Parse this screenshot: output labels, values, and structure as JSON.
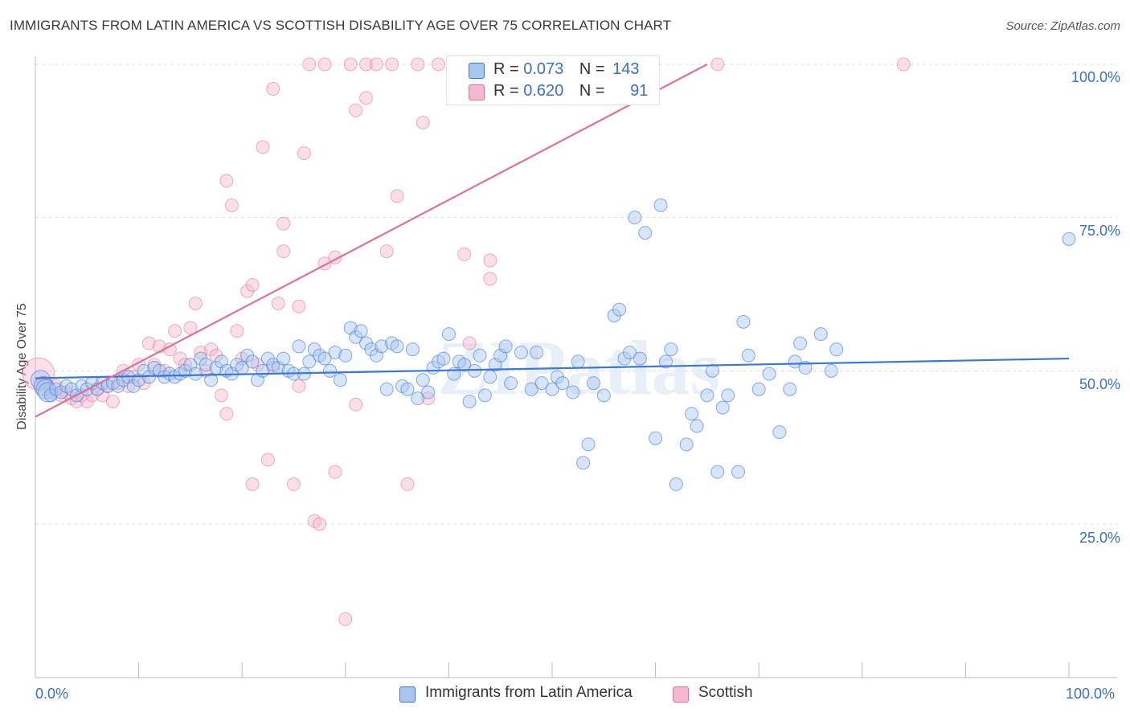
{
  "title": "IMMIGRANTS FROM LATIN AMERICA VS SCOTTISH DISABILITY AGE OVER 75 CORRELATION CHART",
  "source": "Source: ZipAtlas.com",
  "watermark": "ZIPatlas",
  "legend": {
    "blue": {
      "r_label": "R =",
      "r_value": "0.073",
      "n_label": "N =",
      "n_value": "143"
    },
    "pink": {
      "r_label": "R =",
      "r_value": "0.620",
      "n_label": "N =",
      "n_value": "91"
    }
  },
  "colors": {
    "blue": "#3a78d6",
    "blue_fill": "#a9c6f0",
    "pink": "#e0709a",
    "pink_fill": "#f6b8cd",
    "tick_label": "#3a6fc4"
  },
  "chart_data": {
    "type": "scatter",
    "title": "IMMIGRANTS FROM LATIN AMERICA VS SCOTTISH DISABILITY AGE OVER 75 CORRELATION CHART",
    "xlabel": "",
    "ylabel": "Disability Age Over 75",
    "xlim": [
      0,
      100
    ],
    "ylim": [
      5,
      103
    ],
    "x_ticks": [
      "0.0%",
      "100.0%"
    ],
    "y_ticks": [
      {
        "value": 100,
        "label": "100.0%"
      },
      {
        "value": 75,
        "label": "75.0%"
      },
      {
        "value": 50,
        "label": "50.0%"
      },
      {
        "value": 25,
        "label": "25.0%"
      }
    ],
    "grid": "horizontal dashed",
    "legend_position": "bottom",
    "series": [
      {
        "name": "Immigrants from Latin America",
        "color": "#3a78d6",
        "trend": {
          "x": [
            0,
            100
          ],
          "y": [
            48.8,
            52.0
          ]
        },
        "points": [
          [
            0.5,
            48.5
          ],
          [
            0.8,
            47.5
          ],
          [
            1,
            47
          ],
          [
            1.2,
            46.5
          ],
          [
            1.5,
            46
          ],
          [
            2,
            47
          ],
          [
            2.5,
            46.5
          ],
          [
            3,
            47.5
          ],
          [
            3.5,
            47
          ],
          [
            4,
            46
          ],
          [
            4.5,
            47.5
          ],
          [
            5,
            47
          ],
          [
            5.5,
            48
          ],
          [
            6,
            47
          ],
          [
            6.5,
            48
          ],
          [
            7,
            47.5
          ],
          [
            7.5,
            48
          ],
          [
            8,
            47.5
          ],
          [
            8.5,
            48.5
          ],
          [
            9,
            49
          ],
          [
            9.5,
            47.5
          ],
          [
            10,
            48.5
          ],
          [
            10.5,
            50
          ],
          [
            11,
            49
          ],
          [
            11.5,
            50.5
          ],
          [
            12,
            50
          ],
          [
            12.5,
            49
          ],
          [
            13,
            49.5
          ],
          [
            13.5,
            49
          ],
          [
            14,
            49.5
          ],
          [
            14.5,
            50
          ],
          [
            15,
            51
          ],
          [
            15.5,
            49.5
          ],
          [
            16,
            52
          ],
          [
            16.5,
            51
          ],
          [
            17,
            48.5
          ],
          [
            17.5,
            50.5
          ],
          [
            18,
            51.5
          ],
          [
            18.5,
            50
          ],
          [
            19,
            49.5
          ],
          [
            19.5,
            51
          ],
          [
            20,
            50.5
          ],
          [
            20.5,
            52.5
          ],
          [
            21,
            51.5
          ],
          [
            21.5,
            48.5
          ],
          [
            22,
            50
          ],
          [
            22.5,
            52
          ],
          [
            23,
            51
          ],
          [
            23.5,
            50.5
          ],
          [
            24,
            52
          ],
          [
            24.5,
            50
          ],
          [
            25,
            49.5
          ],
          [
            25.5,
            54
          ],
          [
            26,
            49.5
          ],
          [
            26.5,
            51.5
          ],
          [
            27,
            53.5
          ],
          [
            27.5,
            52.5
          ],
          [
            28,
            52
          ],
          [
            28.5,
            50
          ],
          [
            29,
            53
          ],
          [
            29.5,
            48.5
          ],
          [
            30,
            52.5
          ],
          [
            30.5,
            57
          ],
          [
            31,
            55.5
          ],
          [
            31.5,
            56.5
          ],
          [
            32,
            54.5
          ],
          [
            32.5,
            53.5
          ],
          [
            33,
            52.5
          ],
          [
            33.5,
            54
          ],
          [
            34,
            47
          ],
          [
            34.5,
            54.5
          ],
          [
            35,
            54
          ],
          [
            35.5,
            47.5
          ],
          [
            36,
            47
          ],
          [
            36.5,
            53.5
          ],
          [
            37,
            45.5
          ],
          [
            37.5,
            48.5
          ],
          [
            38,
            46.5
          ],
          [
            38.5,
            50.5
          ],
          [
            39,
            51.5
          ],
          [
            39.5,
            52
          ],
          [
            40,
            56
          ],
          [
            40.5,
            49.5
          ],
          [
            41,
            51.5
          ],
          [
            41.5,
            51
          ],
          [
            42,
            45
          ],
          [
            42.5,
            50
          ],
          [
            43,
            52.5
          ],
          [
            43.5,
            46
          ],
          [
            44,
            49
          ],
          [
            44.5,
            51
          ],
          [
            45,
            52.5
          ],
          [
            45.5,
            54
          ],
          [
            46,
            48
          ],
          [
            47,
            53
          ],
          [
            48,
            47
          ],
          [
            48.5,
            53
          ],
          [
            49,
            48
          ],
          [
            50,
            47
          ],
          [
            50.5,
            49
          ],
          [
            51,
            48
          ],
          [
            52,
            46.5
          ],
          [
            52.5,
            51.5
          ],
          [
            53,
            35
          ],
          [
            53.5,
            38
          ],
          [
            54,
            48
          ],
          [
            55,
            46
          ],
          [
            56,
            59
          ],
          [
            56.5,
            60
          ],
          [
            57,
            52
          ],
          [
            57.5,
            53
          ],
          [
            58,
            75
          ],
          [
            58.5,
            52
          ],
          [
            59,
            72.5
          ],
          [
            60,
            39
          ],
          [
            60.5,
            77
          ],
          [
            61,
            51.5
          ],
          [
            61.5,
            53.5
          ],
          [
            62,
            31.5
          ],
          [
            63,
            38
          ],
          [
            63.5,
            43
          ],
          [
            64,
            41
          ],
          [
            65,
            46
          ],
          [
            65.5,
            50
          ],
          [
            66,
            33.5
          ],
          [
            66.5,
            44
          ],
          [
            67,
            46
          ],
          [
            68,
            33.5
          ],
          [
            68.5,
            58
          ],
          [
            69,
            52.5
          ],
          [
            70,
            47
          ],
          [
            71,
            49.5
          ],
          [
            72,
            40
          ],
          [
            73,
            47
          ],
          [
            73.5,
            51.5
          ],
          [
            74,
            54.5
          ],
          [
            74.5,
            50.5
          ],
          [
            76,
            56
          ],
          [
            77,
            50
          ],
          [
            77.5,
            53.5
          ],
          [
            100,
            71.5
          ]
        ]
      },
      {
        "name": "Scottish",
        "color": "#e0709a",
        "trend": {
          "x": [
            0,
            65
          ],
          "y": [
            42.5,
            100
          ]
        },
        "points": [
          [
            0.3,
            49.5
          ],
          [
            0.8,
            48
          ],
          [
            1.2,
            47
          ],
          [
            1.5,
            46.5
          ],
          [
            2,
            47.5
          ],
          [
            2.5,
            46
          ],
          [
            3,
            46.5
          ],
          [
            3.5,
            45.5
          ],
          [
            4,
            45
          ],
          [
            4.5,
            46
          ],
          [
            5,
            45
          ],
          [
            5.5,
            46
          ],
          [
            6,
            47
          ],
          [
            6.5,
            46
          ],
          [
            7,
            47.5
          ],
          [
            7.5,
            45
          ],
          [
            8,
            48
          ],
          [
            8.5,
            50
          ],
          [
            9,
            47.5
          ],
          [
            9.5,
            49
          ],
          [
            10,
            51
          ],
          [
            10.5,
            48
          ],
          [
            11,
            54.5
          ],
          [
            11.5,
            51
          ],
          [
            12,
            54
          ],
          [
            12.5,
            50
          ],
          [
            13,
            53.5
          ],
          [
            13.5,
            56.5
          ],
          [
            14,
            52
          ],
          [
            14.5,
            51
          ],
          [
            15,
            57
          ],
          [
            15.5,
            61
          ],
          [
            16,
            53
          ],
          [
            16.5,
            50
          ],
          [
            17,
            53.5
          ],
          [
            17.5,
            52.5
          ],
          [
            18,
            46
          ],
          [
            18.5,
            43
          ],
          [
            18.5,
            81
          ],
          [
            19,
            77
          ],
          [
            19.5,
            56.5
          ],
          [
            20,
            52
          ],
          [
            20.5,
            63
          ],
          [
            21,
            64
          ],
          [
            21,
            31.5
          ],
          [
            21.5,
            51
          ],
          [
            22,
            86.5
          ],
          [
            22.5,
            35.5
          ],
          [
            23,
            50.5
          ],
          [
            23,
            96
          ],
          [
            23.5,
            61
          ],
          [
            24,
            69.5
          ],
          [
            24,
            74
          ],
          [
            25,
            31.5
          ],
          [
            25.5,
            47.5
          ],
          [
            25.5,
            60.5
          ],
          [
            26,
            85.5
          ],
          [
            26.5,
            100
          ],
          [
            27,
            25.5
          ],
          [
            27.5,
            25
          ],
          [
            28,
            100
          ],
          [
            28,
            67.5
          ],
          [
            29,
            33.5
          ],
          [
            29,
            68.5
          ],
          [
            30,
            9.5
          ],
          [
            30.5,
            100
          ],
          [
            31,
            44.5
          ],
          [
            31,
            92.5
          ],
          [
            32,
            100
          ],
          [
            32,
            94.5
          ],
          [
            33,
            100
          ],
          [
            34,
            69.5
          ],
          [
            34.5,
            100
          ],
          [
            35,
            78.5
          ],
          [
            36,
            31.5
          ],
          [
            37,
            100
          ],
          [
            37.5,
            90.5
          ],
          [
            38,
            45.5
          ],
          [
            39,
            100
          ],
          [
            41.5,
            69
          ],
          [
            42,
            54.5
          ],
          [
            44,
            68
          ],
          [
            44,
            65
          ],
          [
            49,
            100
          ],
          [
            50,
            100
          ],
          [
            66,
            100
          ],
          [
            84,
            100
          ]
        ]
      }
    ]
  },
  "legend_bottom": {
    "blue_label": "Immigrants from Latin America",
    "pink_label": "Scottish"
  }
}
